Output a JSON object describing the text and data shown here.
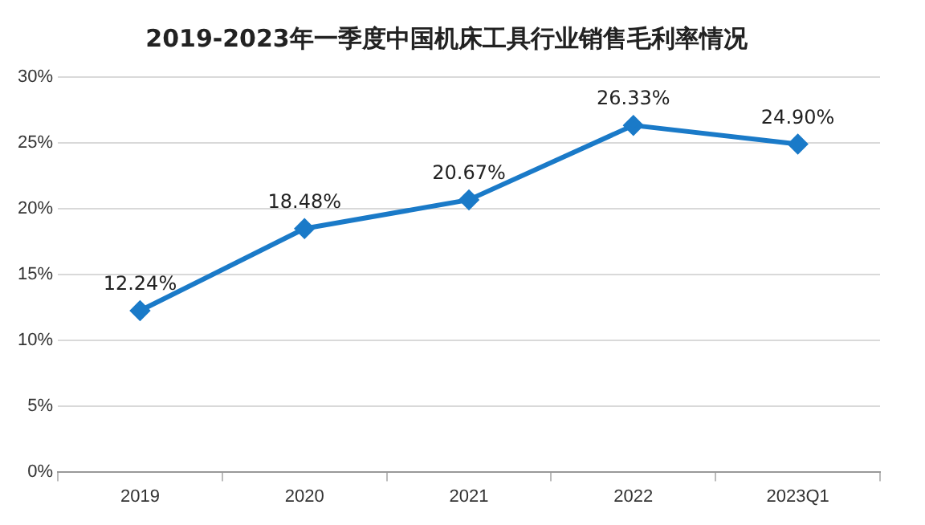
{
  "chart_data": {
    "type": "line",
    "title": "2019-2023年一季度中国机床工具行业销售毛利率情况",
    "categories": [
      "2019",
      "2020",
      "2021",
      "2022",
      "2023Q1"
    ],
    "series": [
      {
        "color": "#1a7ac8",
        "values": [
          12.24,
          18.48,
          20.67,
          26.33,
          24.9
        ],
        "value_labels": [
          "12.24%",
          "18.48%",
          "20.67%",
          "26.33%",
          "24.90%"
        ]
      }
    ],
    "ylim": [
      0,
      30
    ],
    "yticks": [
      {
        "value": 0,
        "label": "0%"
      },
      {
        "value": 5,
        "label": "5%"
      },
      {
        "value": 10,
        "label": "10%"
      },
      {
        "value": 15,
        "label": "15%"
      },
      {
        "value": 20,
        "label": "20%"
      },
      {
        "value": 25,
        "label": "25%"
      },
      {
        "value": 30,
        "label": "30%"
      }
    ],
    "grid": "y",
    "legend": false,
    "marker": "diamond",
    "line_style": "solid"
  }
}
